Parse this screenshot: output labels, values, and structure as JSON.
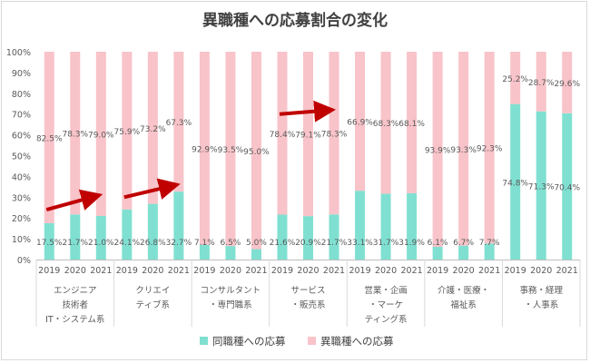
{
  "chart_data": {
    "type": "bar",
    "stacked": true,
    "orientation": "vertical",
    "percent_stacked": true,
    "title": "異職種への応募割合の変化",
    "y_ticks": [
      "0%",
      "10%",
      "20%",
      "30%",
      "40%",
      "50%",
      "60%",
      "70%",
      "80%",
      "90%",
      "100%"
    ],
    "ylim": [
      0,
      100
    ],
    "grid": false,
    "legend_position": "bottom",
    "colors": {
      "same": "#7fe0d1",
      "different": "#f8c3c9",
      "arrow": "#c00000"
    },
    "groups": [
      {
        "label_lines": [
          "エンジニア",
          "技術者",
          "IT・システム系"
        ],
        "years": [
          "2019",
          "2020",
          "2021"
        ]
      },
      {
        "label_lines": [
          "クリエイ",
          "ティブ系"
        ],
        "years": [
          "2019",
          "2020",
          "2021"
        ]
      },
      {
        "label_lines": [
          "コンサルタント",
          "・専門職系"
        ],
        "years": [
          "2019",
          "2020",
          "2021"
        ]
      },
      {
        "label_lines": [
          "サービス",
          "・販売系"
        ],
        "years": [
          "2019",
          "2020",
          "2021"
        ]
      },
      {
        "label_lines": [
          "営業・企画",
          "・マーケ",
          "ティング系"
        ],
        "years": [
          "2019",
          "2020",
          "2021"
        ]
      },
      {
        "label_lines": [
          "介護・医療・",
          "福祉系"
        ],
        "years": [
          "2019",
          "2020",
          "2021"
        ]
      },
      {
        "label_lines": [
          "事務・経理",
          "・人事系"
        ],
        "years": [
          "2019",
          "2020",
          "2021"
        ]
      }
    ],
    "series": [
      {
        "name": "同職種への応募",
        "values": [
          17.5,
          21.7,
          21.0,
          24.1,
          26.8,
          32.7,
          7.1,
          6.5,
          5.0,
          21.6,
          20.9,
          21.7,
          33.1,
          31.7,
          31.9,
          6.1,
          6.7,
          7.7,
          74.8,
          71.3,
          70.4
        ],
        "labels": [
          "17.5%",
          "21.7%",
          "21.0%",
          "24.1%",
          "26.8%",
          "32.7%",
          "7.1%",
          "6.5%",
          "5.0%",
          "21.6%",
          "20.9%",
          "21.7%",
          "33.1%",
          "31.7%",
          "31.9%",
          "6.1%",
          "6.7%",
          "7.7%",
          "74.8%",
          "71.3%",
          "70.4%"
        ]
      },
      {
        "name": "異職種への応募",
        "values": [
          82.5,
          78.3,
          79.0,
          75.9,
          73.2,
          67.3,
          92.9,
          93.5,
          95.0,
          78.4,
          79.1,
          78.3,
          66.9,
          68.3,
          68.1,
          93.9,
          93.3,
          92.3,
          25.2,
          28.7,
          29.6
        ],
        "labels": [
          "82.5%",
          "78.3%",
          "79.0%",
          "75.9%",
          "73.2%",
          "67.3%",
          "92.9%",
          "93.5%",
          "95.0%",
          "78.4%",
          "79.1%",
          "78.3%",
          "66.9%",
          "68.3%",
          "68.1%",
          "93.9%",
          "93.3%",
          "92.3%",
          "25.2%",
          "28.7%",
          "29.6%"
        ]
      }
    ],
    "annotations": [
      {
        "type": "arrow",
        "from": {
          "bar": 0,
          "value": 24
        },
        "to": {
          "bar": 2,
          "value": 31
        }
      },
      {
        "type": "arrow",
        "from": {
          "bar": 3,
          "value": 30
        },
        "to": {
          "bar": 5,
          "value": 36
        }
      },
      {
        "type": "arrow",
        "from": {
          "bar": 9,
          "value": 70
        },
        "to": {
          "bar": 11,
          "value": 72
        }
      }
    ]
  }
}
